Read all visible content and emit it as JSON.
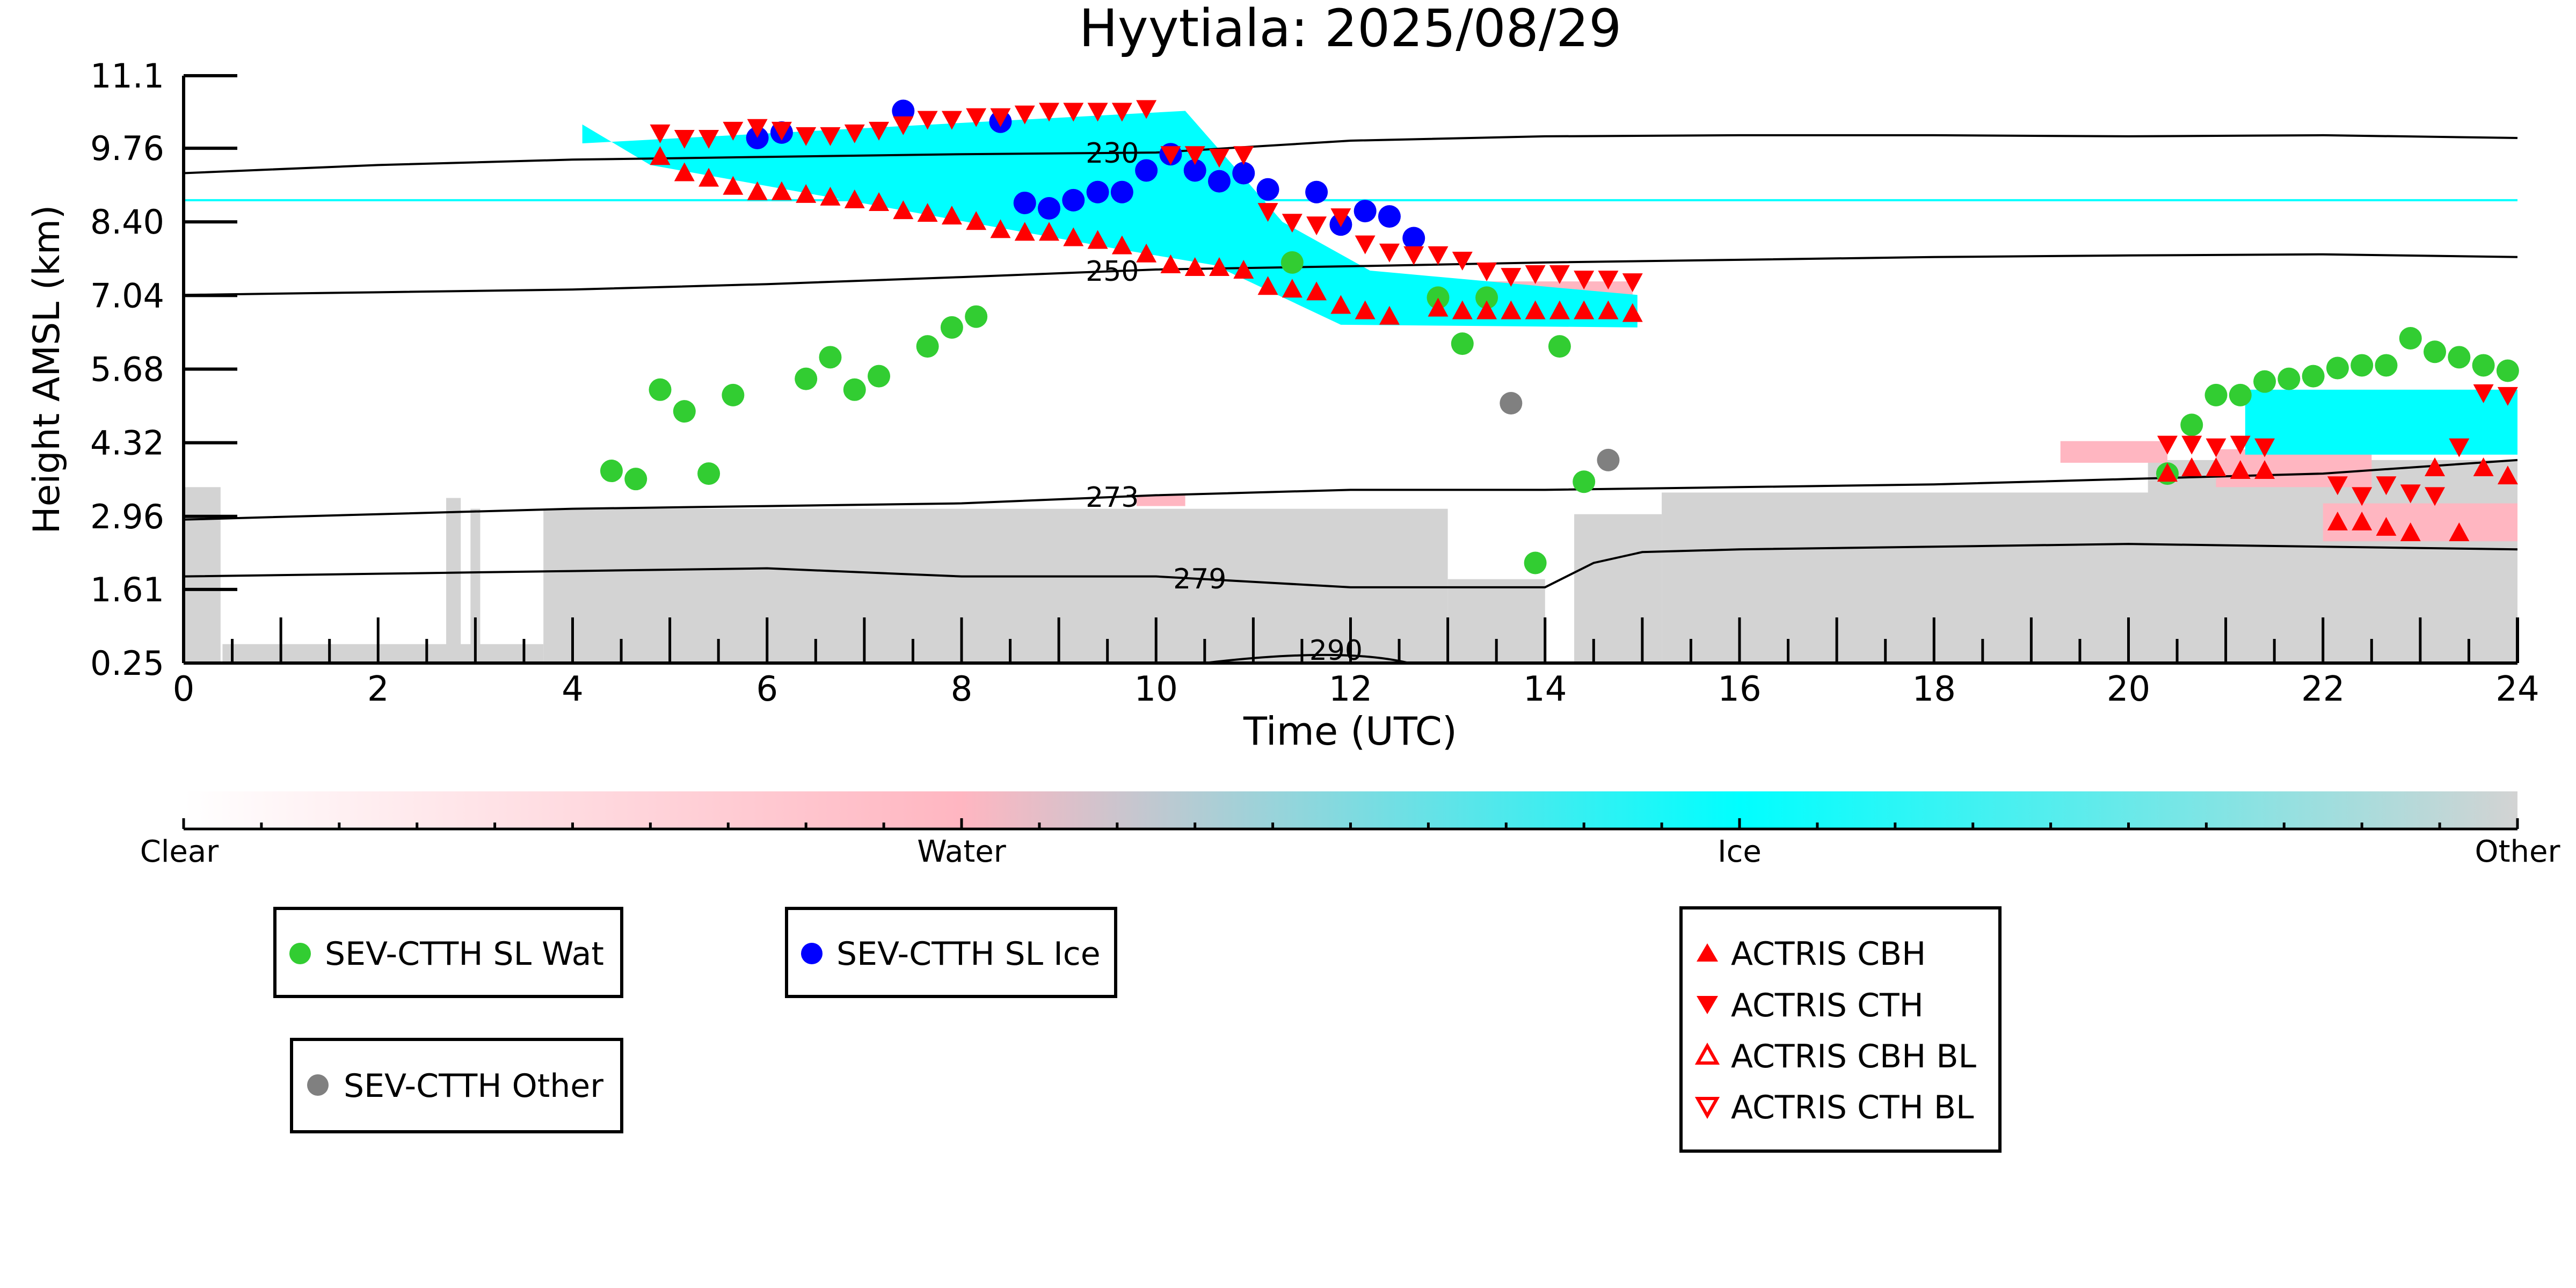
{
  "chart_data": {
    "type": "scatter",
    "title": "Hyytiala: 2025/08/29",
    "xlabel": "Time (UTC)",
    "ylabel": "Height AMSL (km)",
    "xlim": [
      0,
      24
    ],
    "ylim": [
      0.25,
      11.1
    ],
    "x_ticks": [
      "0",
      "2",
      "4",
      "6",
      "8",
      "10",
      "12",
      "14",
      "16",
      "18",
      "20",
      "22",
      "24"
    ],
    "x_tick_values": [
      0,
      2,
      4,
      6,
      8,
      10,
      12,
      14,
      16,
      18,
      20,
      22,
      24
    ],
    "y_ticks": [
      "0.25",
      "1.61",
      "2.96",
      "4.32",
      "5.68",
      "7.04",
      "8.40",
      "9.76",
      "11.1"
    ],
    "y_tick_values": [
      0.25,
      1.61,
      2.96,
      4.32,
      5.68,
      7.04,
      8.4,
      9.76,
      11.1
    ],
    "grid": false,
    "colorbar": {
      "labels": [
        "Clear",
        "Water",
        "Ice",
        "Other"
      ],
      "colors": [
        "#ffffff",
        "#ffb6c1",
        "#00ffff",
        "#d3d3d3"
      ]
    },
    "isotherms": [
      {
        "label": "230",
        "x": [
          0,
          2,
          4,
          6,
          8,
          10,
          12,
          14,
          16,
          18,
          20,
          22,
          24
        ],
        "y": [
          9.3,
          9.45,
          9.55,
          9.6,
          9.65,
          9.68,
          9.9,
          9.98,
          10.0,
          10.0,
          9.98,
          10.0,
          9.95
        ]
      },
      {
        "label": "250",
        "x": [
          0,
          2,
          4,
          6,
          8,
          10,
          12,
          14,
          16,
          18,
          20,
          22,
          24
        ],
        "y": [
          7.05,
          7.1,
          7.15,
          7.25,
          7.38,
          7.52,
          7.58,
          7.65,
          7.7,
          7.75,
          7.78,
          7.8,
          7.75
        ]
      },
      {
        "label": "273",
        "x": [
          0,
          2,
          4,
          6,
          8,
          10,
          12,
          14,
          16,
          18,
          20,
          22,
          24
        ],
        "y": [
          2.9,
          3.0,
          3.1,
          3.15,
          3.2,
          3.35,
          3.45,
          3.45,
          3.5,
          3.55,
          3.65,
          3.75,
          4.0
        ]
      },
      {
        "label": "279",
        "x": [
          0,
          2,
          4,
          6,
          8,
          10,
          11,
          12,
          14,
          14.5,
          15,
          16,
          18,
          20,
          22,
          24
        ],
        "y": [
          1.85,
          1.9,
          1.95,
          2.0,
          1.85,
          1.85,
          1.75,
          1.65,
          1.65,
          2.1,
          2.3,
          2.35,
          2.4,
          2.45,
          2.4,
          2.35
        ]
      }
    ],
    "contour_label_290": "290",
    "series": [
      {
        "name": "SEV-CTTH SL Wat",
        "color": "#32cd32",
        "marker": "circle",
        "x": [
          4.4,
          4.65,
          4.9,
          5.15,
          5.4,
          5.65,
          6.4,
          6.65,
          6.9,
          7.15,
          7.65,
          7.9,
          8.15,
          11.4,
          12.9,
          13.15,
          13.4,
          13.9,
          14.15,
          14.4,
          20.4,
          20.65,
          20.9,
          21.15,
          21.4,
          21.65,
          21.9,
          22.15,
          22.4,
          22.65,
          22.9,
          23.15,
          23.4,
          23.65,
          23.9
        ],
        "y": [
          3.8,
          3.65,
          5.3,
          4.9,
          3.75,
          5.2,
          5.5,
          5.9,
          5.3,
          5.55,
          6.1,
          6.45,
          6.65,
          7.65,
          7.0,
          6.15,
          7.0,
          2.1,
          6.1,
          3.6,
          3.75,
          4.65,
          5.2,
          5.2,
          5.45,
          5.5,
          5.55,
          5.7,
          5.75,
          5.75,
          6.25,
          6.0,
          5.9,
          5.75,
          5.65
        ]
      },
      {
        "name": "SEV-CTTH SL Ice",
        "color": "#0000ff",
        "marker": "circle",
        "x": [
          5.9,
          6.15,
          7.4,
          8.4,
          8.65,
          8.9,
          9.15,
          9.4,
          9.65,
          9.9,
          10.15,
          10.4,
          10.65,
          10.9,
          11.15,
          11.65,
          11.9,
          12.15,
          12.4,
          12.65
        ],
        "y": [
          9.95,
          10.05,
          10.45,
          10.25,
          8.75,
          8.65,
          8.8,
          8.95,
          8.95,
          9.35,
          9.65,
          9.35,
          9.15,
          9.3,
          9.0,
          8.95,
          8.35,
          8.6,
          8.5,
          8.1
        ]
      },
      {
        "name": "SEV-CTTH Other",
        "color": "#808080",
        "marker": "circle",
        "x": [
          13.65,
          14.65
        ],
        "y": [
          5.05,
          4.0
        ]
      },
      {
        "name": "ACTRIS CBH",
        "color": "#ff0000",
        "marker": "triangle-up",
        "x": [
          4.9,
          5.15,
          5.4,
          5.65,
          5.9,
          6.15,
          6.4,
          6.65,
          6.9,
          7.15,
          7.4,
          7.65,
          7.9,
          8.15,
          8.4,
          8.65,
          8.9,
          9.15,
          9.4,
          9.65,
          9.9,
          10.15,
          10.4,
          10.65,
          10.9,
          11.15,
          11.4,
          11.65,
          11.9,
          12.15,
          12.4,
          12.9,
          13.15,
          13.4,
          13.65,
          13.9,
          14.15,
          14.4,
          14.65,
          14.9,
          20.4,
          20.65,
          20.9,
          21.15,
          21.4,
          22.15,
          22.4,
          22.65,
          22.9,
          23.15,
          23.4,
          23.65,
          23.9
        ],
        "y": [
          9.6,
          9.3,
          9.2,
          9.05,
          8.95,
          8.95,
          8.9,
          8.85,
          8.8,
          8.75,
          8.6,
          8.55,
          8.5,
          8.4,
          8.25,
          8.2,
          8.2,
          8.1,
          8.05,
          7.95,
          7.8,
          7.6,
          7.55,
          7.55,
          7.5,
          7.2,
          7.15,
          7.1,
          6.85,
          6.75,
          6.65,
          6.8,
          6.75,
          6.75,
          6.75,
          6.75,
          6.75,
          6.75,
          6.75,
          6.7,
          3.75,
          3.85,
          3.85,
          3.8,
          3.8,
          2.85,
          2.85,
          2.75,
          2.65,
          3.85,
          2.65,
          3.85,
          3.7
        ]
      },
      {
        "name": "ACTRIS CTH",
        "color": "#ff0000",
        "marker": "triangle-down",
        "x": [
          4.9,
          5.15,
          5.4,
          5.65,
          5.9,
          6.15,
          6.4,
          6.65,
          6.9,
          7.15,
          7.4,
          7.65,
          7.9,
          8.15,
          8.4,
          8.65,
          8.9,
          9.15,
          9.4,
          9.65,
          9.9,
          10.15,
          10.4,
          10.65,
          10.9,
          11.15,
          11.4,
          11.65,
          11.9,
          12.15,
          12.4,
          12.65,
          12.9,
          13.15,
          13.4,
          13.65,
          13.9,
          14.15,
          14.4,
          14.65,
          14.9,
          20.4,
          20.65,
          20.9,
          21.15,
          21.4,
          22.15,
          22.4,
          22.65,
          22.9,
          23.15,
          23.4,
          23.65,
          23.9
        ],
        "y": [
          10.05,
          9.95,
          9.95,
          10.1,
          10.15,
          10.1,
          10.0,
          10.0,
          10.05,
          10.1,
          10.2,
          10.3,
          10.3,
          10.35,
          10.35,
          10.4,
          10.45,
          10.45,
          10.45,
          10.45,
          10.5,
          9.65,
          9.65,
          9.6,
          9.65,
          8.6,
          8.4,
          8.35,
          8.5,
          8.0,
          7.85,
          7.8,
          7.8,
          7.7,
          7.5,
          7.4,
          7.45,
          7.45,
          7.35,
          7.35,
          7.3,
          4.3,
          4.3,
          4.25,
          4.3,
          4.25,
          3.55,
          3.35,
          3.55,
          3.4,
          3.35,
          4.25,
          5.25,
          5.2
        ]
      },
      {
        "name": "ACTRIS CBH BL",
        "color": "#ff0000",
        "marker": "triangle-up-open",
        "x": [],
        "y": []
      },
      {
        "name": "ACTRIS CTH BL",
        "color": "#ff0000",
        "marker": "triangle-down-open",
        "x": [],
        "y": []
      }
    ]
  },
  "legends": {
    "box1": [
      "SEV-CTTH SL Wat"
    ],
    "box2": [
      "SEV-CTTH SL Ice"
    ],
    "box3": [
      "SEV-CTTH Other"
    ],
    "box4": [
      "ACTRIS CBH",
      "ACTRIS CTH",
      "ACTRIS CBH BL",
      "ACTRIS CTH BL"
    ]
  }
}
